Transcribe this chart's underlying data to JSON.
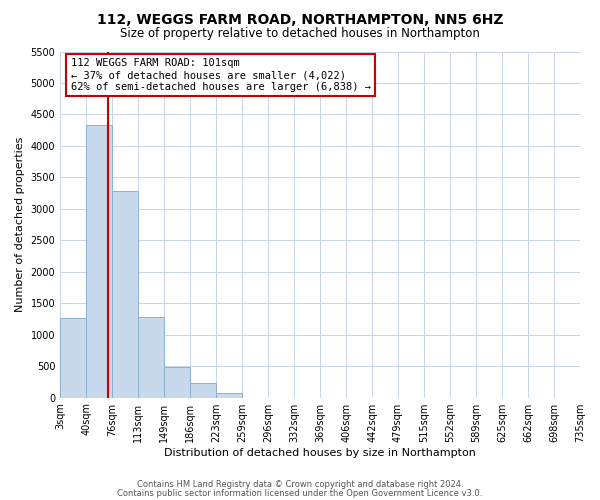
{
  "title": "112, WEGGS FARM ROAD, NORTHAMPTON, NN5 6HZ",
  "subtitle": "Size of property relative to detached houses in Northampton",
  "xlabel": "Distribution of detached houses by size in Northampton",
  "ylabel": "Number of detached properties",
  "bin_labels": [
    "3sqm",
    "40sqm",
    "76sqm",
    "113sqm",
    "149sqm",
    "186sqm",
    "223sqm",
    "259sqm",
    "296sqm",
    "332sqm",
    "369sqm",
    "406sqm",
    "442sqm",
    "479sqm",
    "515sqm",
    "552sqm",
    "589sqm",
    "625sqm",
    "662sqm",
    "698sqm",
    "735sqm"
  ],
  "bin_counts": [
    1270,
    4330,
    3280,
    1280,
    480,
    235,
    80,
    0,
    0,
    0,
    0,
    0,
    0,
    0,
    0,
    0,
    0,
    0,
    0,
    0
  ],
  "bar_color": "#c9d9ec",
  "bar_edge_color": "#8ab0d0",
  "property_bin_index": 1.85,
  "ylim": [
    0,
    5500
  ],
  "yticks": [
    0,
    500,
    1000,
    1500,
    2000,
    2500,
    3000,
    3500,
    4000,
    4500,
    5000,
    5500
  ],
  "annotation_title": "112 WEGGS FARM ROAD: 101sqm",
  "annotation_line1": "← 37% of detached houses are smaller (4,022)",
  "annotation_line2": "62% of semi-detached houses are larger (6,838) →",
  "annotation_box_color": "#ffffff",
  "annotation_box_edge_color": "#cc0000",
  "vline_color": "#cc0000",
  "footer1": "Contains HM Land Registry data © Crown copyright and database right 2024.",
  "footer2": "Contains public sector information licensed under the Open Government Licence v3.0.",
  "background_color": "#ffffff",
  "grid_color": "#c8d4e8",
  "title_fontsize": 10,
  "subtitle_fontsize": 8.5,
  "ylabel_fontsize": 8,
  "xlabel_fontsize": 8,
  "tick_fontsize": 7,
  "annot_fontsize": 7.5,
  "footer_fontsize": 6
}
